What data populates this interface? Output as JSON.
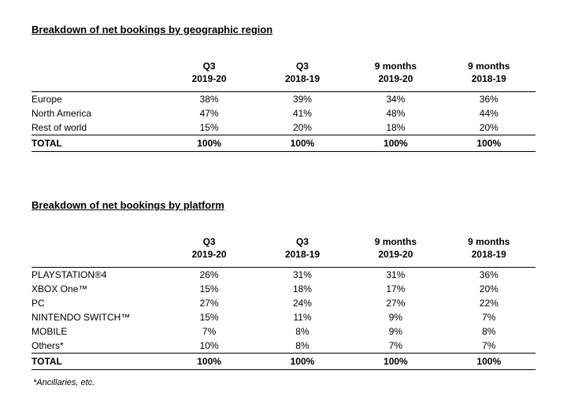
{
  "section1": {
    "title": "Breakdown of net bookings by geographic region",
    "columns": [
      {
        "l1": "Q3",
        "l2": "2019-20"
      },
      {
        "l1": "Q3",
        "l2": "2018-19"
      },
      {
        "l1": "9 months",
        "l2": "2019-20"
      },
      {
        "l1": "9 months",
        "l2": "2018-19"
      }
    ],
    "rows": [
      {
        "label": "Europe",
        "v": [
          "38%",
          "39%",
          "34%",
          "36%"
        ]
      },
      {
        "label": "North America",
        "v": [
          "47%",
          "41%",
          "48%",
          "44%"
        ]
      },
      {
        "label": "Rest of world",
        "v": [
          "15%",
          "20%",
          "18%",
          "20%"
        ]
      }
    ],
    "total": {
      "label": "TOTAL",
      "v": [
        "100%",
        "100%",
        "100%",
        "100%"
      ]
    }
  },
  "section2": {
    "title": "Breakdown of net bookings by platform",
    "columns": [
      {
        "l1": "Q3",
        "l2": "2019-20"
      },
      {
        "l1": "Q3",
        "l2": "2018-19"
      },
      {
        "l1": "9 months",
        "l2": "2019-20"
      },
      {
        "l1": "9 months",
        "l2": "2018-19"
      }
    ],
    "rows": [
      {
        "label": "PLAYSTATION®4",
        "v": [
          "26%",
          "31%",
          "31%",
          "36%"
        ]
      },
      {
        "label": "XBOX One™",
        "v": [
          "15%",
          "18%",
          "17%",
          "20%"
        ]
      },
      {
        "label": "PC",
        "v": [
          "27%",
          "24%",
          "27%",
          "22%"
        ]
      },
      {
        "label": "NINTENDO SWITCH™",
        "v": [
          "15%",
          "11%",
          "9%",
          "7%"
        ]
      },
      {
        "label": "MOBILE",
        "v": [
          "7%",
          "8%",
          "9%",
          "8%"
        ]
      },
      {
        "label": "Others*",
        "v": [
          "10%",
          "8%",
          "7%",
          "7%"
        ]
      }
    ],
    "total": {
      "label": "TOTAL",
      "v": [
        "100%",
        "100%",
        "100%",
        "100%"
      ]
    },
    "footnote": "*Ancillaries, etc."
  }
}
